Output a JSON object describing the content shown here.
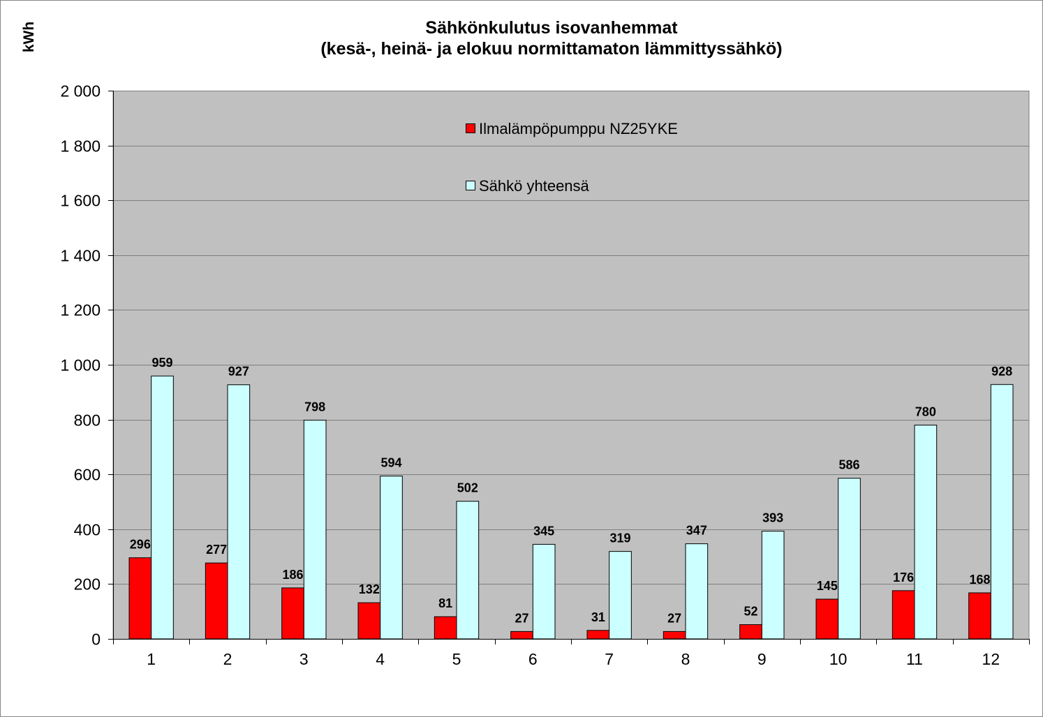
{
  "chart_data": {
    "type": "bar",
    "title": "Sähkönkulutus isovanhemmat",
    "subtitle": "(kesä-, heinä- ja elokuu normittamaton lämmittyssähkö)",
    "ylabel": "kWh",
    "categories": [
      "1",
      "2",
      "3",
      "4",
      "5",
      "6",
      "7",
      "8",
      "9",
      "10",
      "11",
      "12"
    ],
    "series": [
      {
        "name": "Ilmalämpöpumppu NZ25YKE",
        "color": "#ff0000",
        "values": [
          296,
          277,
          186,
          132,
          81,
          27,
          31,
          27,
          52,
          145,
          176,
          168
        ]
      },
      {
        "name": "Sähkö yhteensä",
        "color": "#ccffff",
        "values": [
          959,
          927,
          798,
          594,
          502,
          345,
          319,
          347,
          393,
          586,
          780,
          928
        ]
      }
    ],
    "ylim": [
      0,
      2000
    ],
    "ytick_step": 200,
    "ytick_labels": [
      "0",
      "200",
      "400",
      "600",
      "800",
      "1 000",
      "1 200",
      "1 400",
      "1 600",
      "1 800",
      "2 000"
    ],
    "grid": true,
    "legend": "top-center",
    "plot_background": "#c0c0c0",
    "gridline_color": "#7f7f7f"
  }
}
